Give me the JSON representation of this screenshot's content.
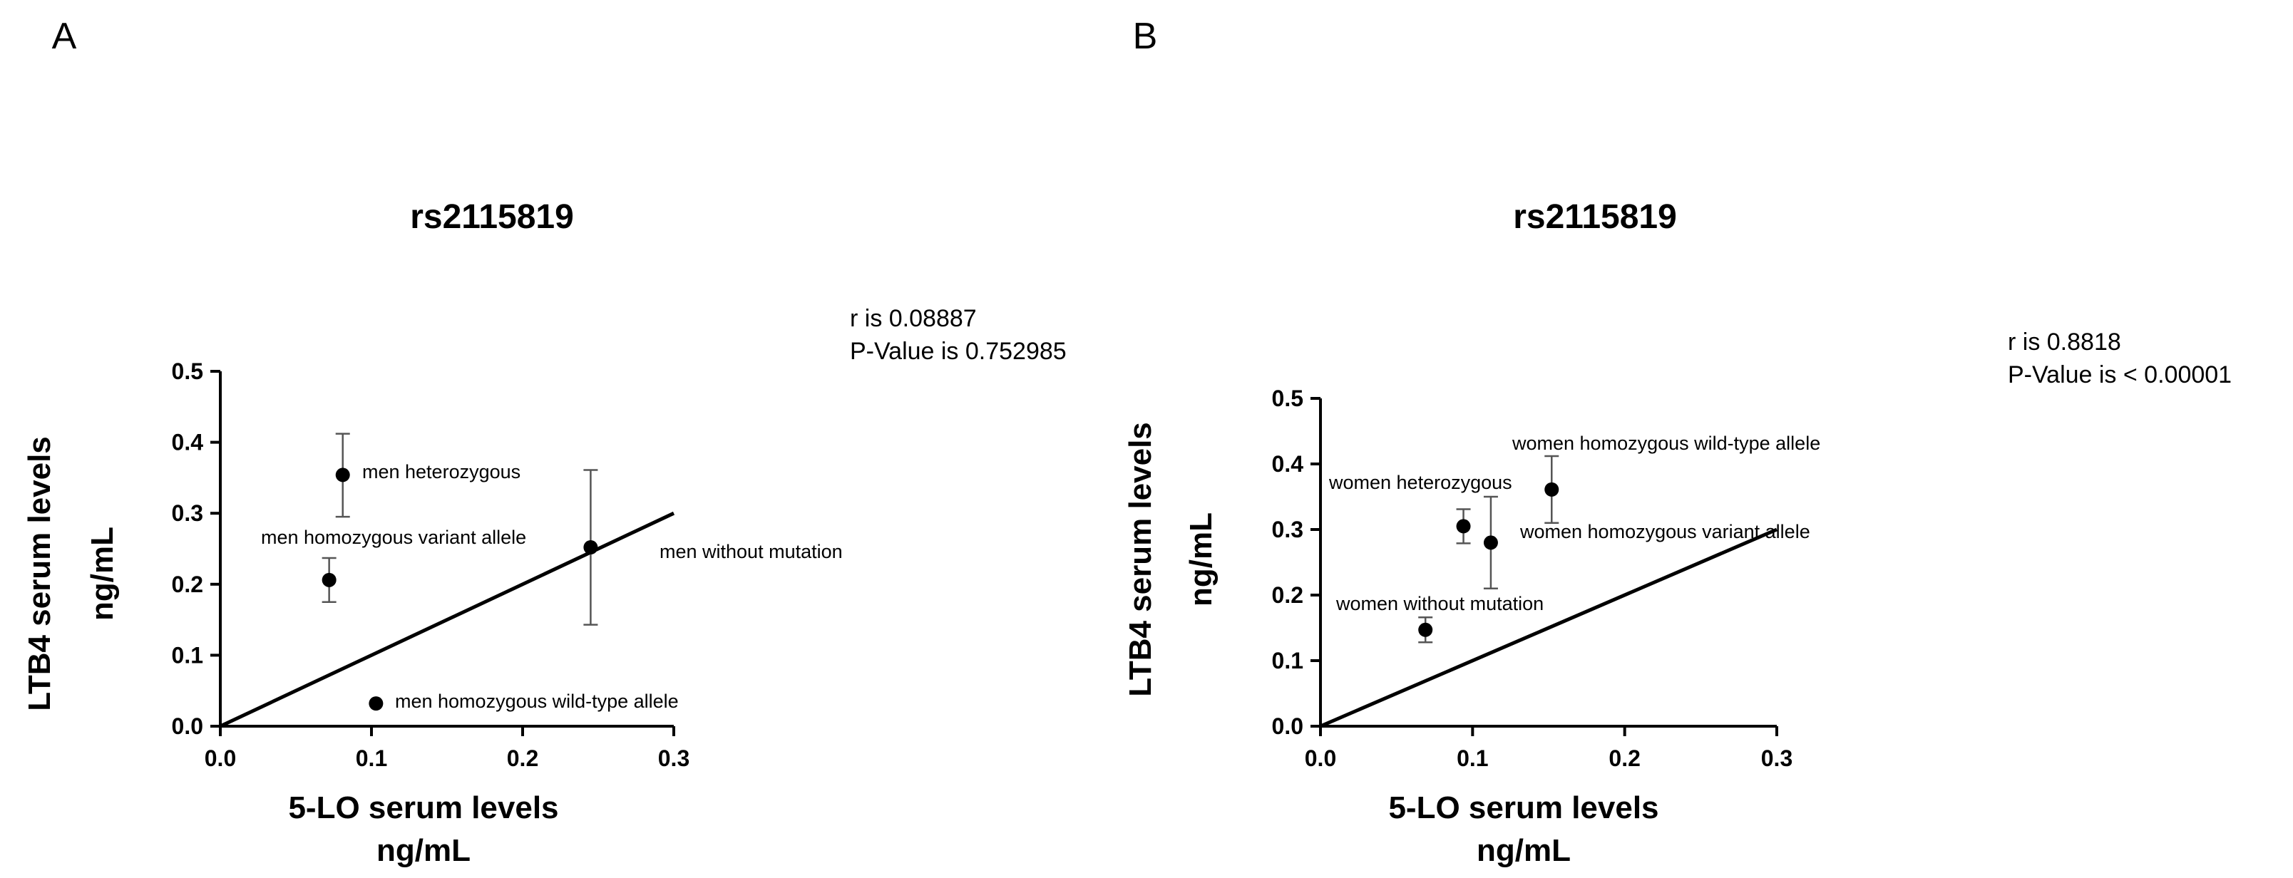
{
  "chart_data": [
    {
      "type": "scatter",
      "panel": "A",
      "title": "rs2115819",
      "xlabel": [
        "5-LO serum levels",
        "ng/mL"
      ],
      "ylabel": [
        "LTB4 serum levels",
        "ng/mL"
      ],
      "xlim": [
        0,
        0.3
      ],
      "ylim": [
        0,
        0.5
      ],
      "x_ticks": [
        "0.0",
        "0.1",
        "0.2",
        "0.3"
      ],
      "y_ticks": [
        "0.0",
        "0.1",
        "0.2",
        "0.3",
        "0.4",
        "0.5"
      ],
      "stats": [
        "r is 0.08887",
        "P-Value is 0.752985"
      ],
      "trend_line": {
        "x": [
          0,
          0.3
        ],
        "y": [
          0,
          0.3
        ]
      },
      "points": [
        {
          "label": "men heterozygous",
          "x": 0.081,
          "y": 0.354,
          "err_low": 0.295,
          "err_high": 0.412,
          "label_side": "right"
        },
        {
          "label": "men homozygous variant allele",
          "x": 0.072,
          "y": 0.206,
          "err_low": 0.175,
          "err_high": 0.237,
          "label_side": "above"
        },
        {
          "label": "men without mutation",
          "x": 0.245,
          "y": 0.252,
          "err_low": 0.143,
          "err_high": 0.361,
          "label_side": "right-below"
        },
        {
          "label": "men homozygous wild-type allele",
          "x": 0.103,
          "y": 0.032,
          "err_low": null,
          "err_high": null,
          "label_side": "right"
        }
      ]
    },
    {
      "type": "scatter",
      "panel": "B",
      "title": "rs2115819",
      "xlabel": [
        "5-LO serum levels",
        "ng/mL"
      ],
      "ylabel": [
        "LTB4 serum levels",
        "ng/mL"
      ],
      "xlim": [
        0,
        0.3
      ],
      "ylim": [
        0,
        0.5
      ],
      "x_ticks": [
        "0.0",
        "0.1",
        "0.2",
        "0.3"
      ],
      "y_ticks": [
        "0.0",
        "0.1",
        "0.2",
        "0.3",
        "0.4",
        "0.5"
      ],
      "stats": [
        "r  is 0.8818",
        "P-Value is < 0.00001"
      ],
      "trend_line": {
        "x": [
          0,
          0.3
        ],
        "y": [
          0,
          0.3
        ]
      },
      "points": [
        {
          "label": "women homozygous wild-type allele",
          "x": 0.152,
          "y": 0.361,
          "err_low": 0.31,
          "err_high": 0.412,
          "label_side": "above-right"
        },
        {
          "label": "women heterozygous",
          "x": 0.094,
          "y": 0.305,
          "err_low": 0.279,
          "err_high": 0.331,
          "label_side": "above-left"
        },
        {
          "label": "women homozygous variant allele",
          "x": 0.112,
          "y": 0.28,
          "err_low": 0.21,
          "err_high": 0.35,
          "label_side": "right"
        },
        {
          "label": "women without mutation",
          "x": 0.069,
          "y": 0.147,
          "err_low": 0.128,
          "err_high": 0.166,
          "label_side": "above"
        }
      ]
    }
  ]
}
